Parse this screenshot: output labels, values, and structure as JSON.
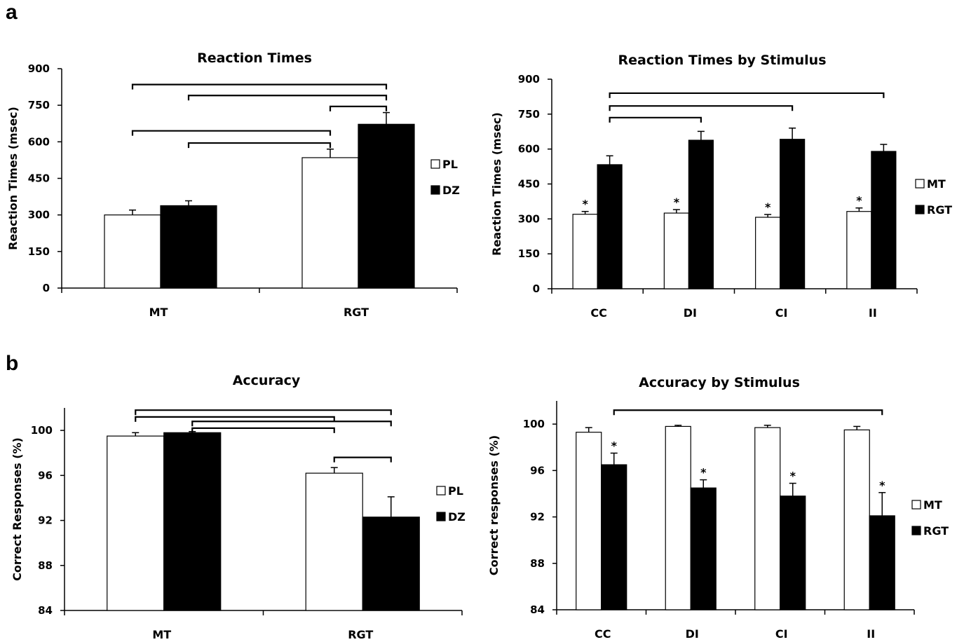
{
  "panels": {
    "a": "a",
    "b": "b"
  },
  "chart_data": [
    {
      "type": "bar",
      "title": "Reaction Times",
      "ylabel": "Reaction Times  (msec)",
      "xlabel": "",
      "ylim": [
        0,
        900
      ],
      "yticks": [
        0,
        150,
        300,
        450,
        600,
        750,
        900
      ],
      "categories": [
        "MT",
        "RGT"
      ],
      "series": [
        {
          "name": "PL",
          "values": [
            300,
            535
          ],
          "errors": [
            20,
            35
          ],
          "fill": "#ffffff"
        },
        {
          "name": "DZ",
          "values": [
            338,
            672
          ],
          "errors": [
            20,
            48
          ],
          "fill": "#000000"
        }
      ],
      "stars": [],
      "brackets": [
        {
          "from": [
            0,
            0
          ],
          "to": [
            1,
            1
          ],
          "y": 835
        },
        {
          "from": [
            0,
            1
          ],
          "to": [
            1,
            1
          ],
          "y": 790
        },
        {
          "from": [
            1,
            0
          ],
          "to": [
            1,
            1
          ],
          "y": 745
        },
        {
          "from": [
            0,
            0
          ],
          "to": [
            1,
            0
          ],
          "y": 645
        },
        {
          "from": [
            0,
            1
          ],
          "to": [
            1,
            0
          ],
          "y": 595
        }
      ],
      "legend_position": "right"
    },
    {
      "type": "bar",
      "title": "Reaction Times by Stimulus",
      "ylabel": "Reaction  Times  (msec)",
      "xlabel": "",
      "ylim": [
        0,
        900
      ],
      "yticks": [
        0,
        150,
        300,
        450,
        600,
        750,
        900
      ],
      "categories": [
        "CC",
        "DI",
        "CI",
        "II"
      ],
      "series": [
        {
          "name": "MT",
          "values": [
            320,
            325,
            307,
            332
          ],
          "errors": [
            12,
            15,
            12,
            15
          ],
          "fill": "#ffffff"
        },
        {
          "name": "RGT",
          "values": [
            533,
            638,
            642,
            590
          ],
          "errors": [
            38,
            38,
            48,
            30
          ],
          "fill": "#000000"
        }
      ],
      "stars": [
        {
          "cat": 0,
          "series": 0
        },
        {
          "cat": 1,
          "series": 0
        },
        {
          "cat": 2,
          "series": 0
        },
        {
          "cat": 3,
          "series": 0
        }
      ],
      "brackets": [
        {
          "from": [
            0,
            1
          ],
          "to": [
            3,
            1
          ],
          "y": 840
        },
        {
          "from": [
            0,
            1
          ],
          "to": [
            2,
            1
          ],
          "y": 785
        },
        {
          "from": [
            0,
            1
          ],
          "to": [
            1,
            1
          ],
          "y": 735
        }
      ],
      "legend_position": "right"
    },
    {
      "type": "bar",
      "title": "Accuracy",
      "ylabel": "Correct  Responses (%)",
      "xlabel": "",
      "ylim": [
        84,
        102
      ],
      "yticks": [
        84,
        88,
        92,
        96,
        100
      ],
      "categories": [
        "MT",
        "RGT"
      ],
      "series": [
        {
          "name": "PL",
          "values": [
            99.5,
            96.2
          ],
          "errors": [
            0.3,
            0.5
          ],
          "fill": "#ffffff"
        },
        {
          "name": "DZ",
          "values": [
            99.8,
            92.3
          ],
          "errors": [
            0.1,
            1.8
          ],
          "fill": "#000000"
        }
      ],
      "stars": [],
      "brackets": [
        {
          "from": [
            0,
            0
          ],
          "to": [
            1,
            1
          ],
          "y": 101.8
        },
        {
          "from": [
            0,
            0
          ],
          "to": [
            1,
            0
          ],
          "y": 101.2
        },
        {
          "from": [
            0,
            1
          ],
          "to": [
            1,
            1
          ],
          "y": 100.8
        },
        {
          "from": [
            0,
            1
          ],
          "to": [
            1,
            0
          ],
          "y": 100.2
        },
        {
          "from": [
            1,
            0
          ],
          "to": [
            1,
            1
          ],
          "y": 97.6
        }
      ],
      "legend_position": "right"
    },
    {
      "type": "bar",
      "title": "Accuracy by Stimulus",
      "ylabel": "Correct   responses  (%)",
      "xlabel": "",
      "ylim": [
        84,
        102
      ],
      "yticks": [
        84,
        88,
        92,
        96,
        100
      ],
      "categories": [
        "CC",
        "DI",
        "CI",
        "II"
      ],
      "series": [
        {
          "name": "MT",
          "values": [
            99.3,
            99.8,
            99.7,
            99.5
          ],
          "errors": [
            0.4,
            0.1,
            0.2,
            0.3
          ],
          "fill": "#ffffff"
        },
        {
          "name": "RGT",
          "values": [
            96.5,
            94.5,
            93.8,
            92.1
          ],
          "errors": [
            1.0,
            0.7,
            1.1,
            2.0
          ],
          "fill": "#000000"
        }
      ],
      "stars": [
        {
          "cat": 0,
          "series": 1
        },
        {
          "cat": 1,
          "series": 1
        },
        {
          "cat": 2,
          "series": 1
        },
        {
          "cat": 3,
          "series": 1
        }
      ],
      "brackets": [
        {
          "from": [
            0,
            1
          ],
          "to": [
            3,
            1
          ],
          "y": 101.2
        }
      ],
      "legend_position": "right"
    }
  ]
}
